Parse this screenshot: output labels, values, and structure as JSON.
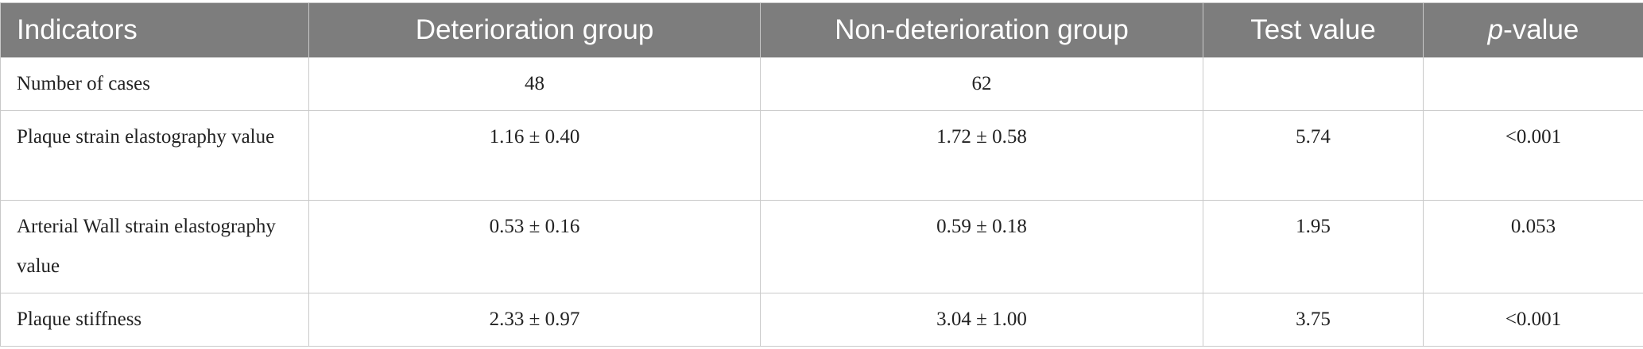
{
  "table": {
    "header": [
      "Indicators",
      "Deterioration group",
      "Non-deterioration group",
      "Test value",
      "p-value"
    ],
    "rows": [
      [
        "Number of cases",
        "48",
        "62"
      ],
      [
        "Plaque strain elastography value",
        "1.16 ± 0.40",
        "1.72 ± 0.58",
        "5.74",
        "<0.001"
      ],
      [
        "Arterial Wall strain elastography value",
        "0.53 ± 0.16",
        "0.59 ± 0.18",
        "1.95",
        "0.053"
      ],
      [
        "Plaque stiffness",
        "2.33 ± 0.97",
        "3.04 ± 1.00",
        "3.75",
        "<0.001"
      ]
    ]
  }
}
